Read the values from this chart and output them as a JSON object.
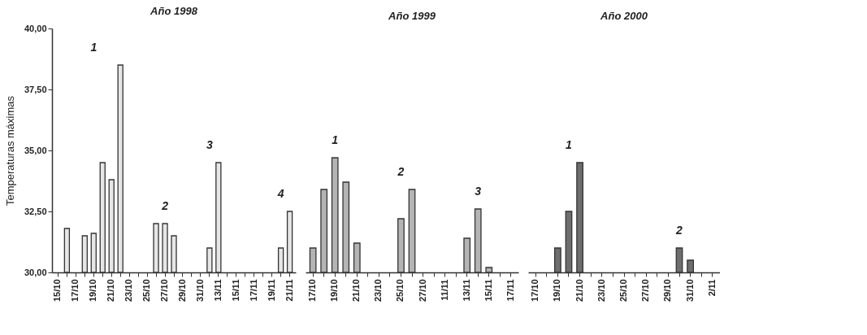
{
  "chart_data": [
    {
      "type": "bar",
      "title": "Año 1998",
      "ylabel": "Temperaturas máximas",
      "categories": [
        "15/10",
        null,
        "17/10",
        null,
        "19/10",
        null,
        "21/10",
        null,
        "23/10",
        null,
        "25/10",
        null,
        "27/10",
        null,
        "29/10",
        null,
        "31/10",
        null,
        "13/11",
        null,
        "15/11",
        null,
        "17/11",
        null,
        "19/11",
        null,
        "21/11"
      ],
      "series": [
        {
          "color": "#e6e6e6",
          "values": [
            null,
            31.8,
            null,
            31.5,
            31.6,
            34.5,
            33.8,
            38.5,
            null,
            null,
            null,
            32.0,
            32.0,
            31.5,
            null,
            null,
            null,
            31.0,
            34.5,
            null,
            null,
            null,
            null,
            null,
            null,
            31.0,
            32.5
          ]
        }
      ],
      "ylim": [
        30,
        40
      ],
      "yticks": [
        {
          "value": 30,
          "label": "30,00"
        },
        {
          "value": 32.5,
          "label": "32,50"
        },
        {
          "value": 35,
          "label": "35,00"
        },
        {
          "value": 37.5,
          "label": "37,50"
        },
        {
          "value": 40,
          "label": "40,00"
        }
      ],
      "annotations": [
        "1",
        "2",
        "3",
        "4"
      ]
    },
    {
      "type": "bar",
      "title": "Año 1999",
      "categories": [
        "17/10",
        null,
        "19/10",
        null,
        "21/10",
        null,
        "23/10",
        null,
        "25/10",
        null,
        "27/10",
        null,
        "11/11",
        null,
        "13/11",
        null,
        "15/11",
        null,
        "17/11"
      ],
      "series": [
        {
          "color": "#b4b4b4",
          "values": [
            31.0,
            33.4,
            34.7,
            33.7,
            31.2,
            null,
            null,
            null,
            32.2,
            33.4,
            null,
            null,
            null,
            null,
            31.4,
            32.6,
            30.2,
            null,
            null
          ]
        }
      ],
      "ylim": [
        30,
        40
      ],
      "tick_labels": "x",
      "annotations": [
        "1",
        "2",
        "3"
      ]
    },
    {
      "type": "bar",
      "title": "Año 2000",
      "categories": [
        "17/10",
        null,
        "19/10",
        null,
        "21/10",
        null,
        "23/10",
        null,
        "25/10",
        null,
        "27/10",
        null,
        "29/10",
        null,
        "31/10",
        null,
        "2/11"
      ],
      "series": [
        {
          "color": "#6e6e6e",
          "values": [
            null,
            null,
            31.0,
            32.5,
            34.5,
            null,
            null,
            null,
            null,
            null,
            null,
            null,
            null,
            31.0,
            30.5,
            null,
            null
          ]
        }
      ],
      "ylim": [
        30,
        40
      ],
      "tick_labels": "x",
      "annotations": [
        "1",
        "2"
      ]
    }
  ]
}
